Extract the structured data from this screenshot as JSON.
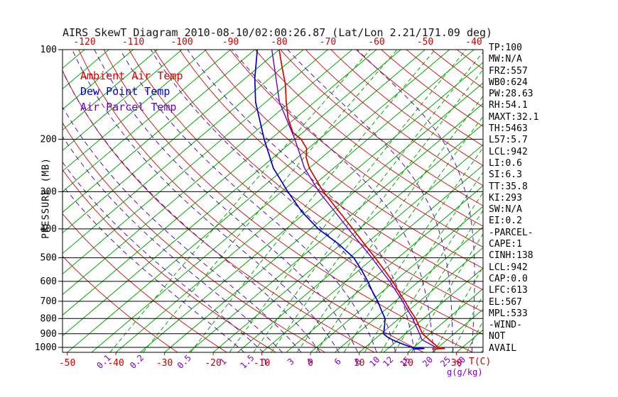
{
  "title": "AIRS SkewT Diagram 2010-08-10/02:00:26.87 (Lat/Lon 2.21/171.09 deg)",
  "axes": {
    "pressure_label": "PRESSURE (MB)",
    "pressure_ticks": [
      100,
      200,
      300,
      400,
      500,
      600,
      700,
      800,
      900,
      1000
    ],
    "top_temp_labels": [
      -120,
      -110,
      -100,
      -90,
      -80,
      -70,
      -60,
      -50,
      -40
    ],
    "bottom_temp_labels": [
      -50,
      -40,
      -30,
      -20,
      -10,
      0,
      10,
      20,
      30
    ],
    "temp_unit_label": "T(C)",
    "mixing_unit_label": "g(g/kg)"
  },
  "legend": [
    {
      "label": "Ambient Air Temp",
      "color": "#dd0000"
    },
    {
      "label": "Dew Point Temp",
      "color": "#0000cc"
    },
    {
      "label": "Air Parcel Temp",
      "color": "#6a00c8"
    }
  ],
  "stats": [
    "TP:100",
    "MW:N/A",
    "FRZ:557",
    "WB0:624",
    "PW:28.63",
    "RH:54.1",
    "MAXT:32.1",
    "TH:5463",
    "L57:5.7",
    "LCL:942",
    "LI:0.6",
    "SI:6.3",
    "TT:35.8",
    "KI:293",
    "SW:N/A",
    "EI:0.2",
    "-PARCEL-",
    "CAPE:1",
    "CINH:138",
    "LCL:942",
    "CAP:0.0",
    "LFC:613",
    "EL:567",
    "MPL:533",
    "-WIND-",
    "NOT",
    "AVAIL"
  ],
  "colors": {
    "ambient": "#dd0000",
    "dew_point": "#0000cc",
    "parcel": "#6a00c8",
    "isotherm_green": "#00a800",
    "adiabat_red": "#cc2020",
    "moist_purple": "#5a10b0",
    "label_red": "#cc0000",
    "label_purple": "#7a00cc",
    "axis_black": "#000000"
  },
  "chart_data": {
    "type": "line",
    "chart": "skew-t-log-p",
    "title": "AIRS SkewT Diagram 2010-08-10/02:00:26.87 (Lat/Lon 2.21/171.09 deg)",
    "y_axis": {
      "label": "PRESSURE (MB)",
      "scale": "log",
      "range": [
        100,
        1039
      ],
      "ticks": [
        100,
        200,
        300,
        400,
        500,
        600,
        700,
        800,
        900,
        1000
      ]
    },
    "x_axis": {
      "label": "T(C)",
      "surface_ticks": [
        -50,
        -40,
        -30,
        -20,
        -10,
        0,
        10,
        20,
        30
      ],
      "top_ticks": [
        -120,
        -110,
        -100,
        -90,
        -80,
        -70,
        -60,
        -50,
        -40
      ]
    },
    "isotherms_c": {
      "min": -125,
      "max": 35,
      "step": 5
    },
    "dry_adiabats_c": {
      "min": -30,
      "max": 180,
      "step": 10
    },
    "moist_adiabats_c": {
      "min": -16,
      "max": 32,
      "step": 4
    },
    "mixing_ratio_lines_g_per_kg": [
      0.1,
      0.2,
      0.5,
      1,
      1.5,
      2,
      3,
      4,
      6,
      8,
      10,
      12,
      15,
      20,
      25,
      30
    ],
    "series": [
      {
        "name": "Ambient Air Temp",
        "data_name": "ambient-temp-curve",
        "color": "#dd0000",
        "width": 1.7,
        "points": [
          [
            1013,
            24.2
          ],
          [
            1009,
            26.6
          ],
          [
            1004,
            25.8
          ],
          [
            1000,
            25.0
          ],
          [
            975,
            23.5
          ],
          [
            950,
            21.8
          ],
          [
            925,
            20.2
          ],
          [
            900,
            18.5
          ],
          [
            850,
            16.0
          ],
          [
            800,
            13.4
          ],
          [
            750,
            10.2
          ],
          [
            700,
            7.0
          ],
          [
            650,
            3.4
          ],
          [
            600,
            -0.4
          ],
          [
            550,
            -4.8
          ],
          [
            500,
            -9.7
          ],
          [
            450,
            -15.2
          ],
          [
            400,
            -21.3
          ],
          [
            350,
            -28.3
          ],
          [
            300,
            -36.4
          ],
          [
            250,
            -45.0
          ],
          [
            230,
            -48.3
          ],
          [
            215,
            -50.3
          ],
          [
            200,
            -53.7
          ],
          [
            190,
            -57.0
          ],
          [
            170,
            -61.5
          ],
          [
            150,
            -65.8
          ],
          [
            130,
            -70.5
          ],
          [
            115,
            -75.0
          ],
          [
            100,
            -80.0
          ]
        ]
      },
      {
        "name": "Dew Point Temp",
        "data_name": "dew-point-curve",
        "color": "#0000cc",
        "width": 1.7,
        "points": [
          [
            1013,
            20.2
          ],
          [
            1009,
            22.4
          ],
          [
            1004,
            21.0
          ],
          [
            1000,
            19.6
          ],
          [
            975,
            17.0
          ],
          [
            950,
            14.4
          ],
          [
            925,
            12.2
          ],
          [
            900,
            10.5
          ],
          [
            850,
            8.9
          ],
          [
            800,
            7.1
          ],
          [
            750,
            4.3
          ],
          [
            700,
            1.4
          ],
          [
            650,
            -2.0
          ],
          [
            600,
            -5.5
          ],
          [
            550,
            -9.5
          ],
          [
            500,
            -14.1
          ],
          [
            450,
            -20.5
          ],
          [
            400,
            -28.4
          ],
          [
            350,
            -36.0
          ],
          [
            300,
            -43.7
          ],
          [
            250,
            -52.4
          ],
          [
            200,
            -61.3
          ],
          [
            150,
            -72.1
          ],
          [
            125,
            -78.0
          ],
          [
            100,
            -84.5
          ]
        ]
      },
      {
        "name": "Air Parcel Temp",
        "data_name": "parcel-temp-curve",
        "color": "#6a00c8",
        "width": 1.4,
        "points": [
          [
            1000,
            24.6
          ],
          [
            942,
            19.8
          ],
          [
            900,
            17.9
          ],
          [
            850,
            15.4
          ],
          [
            800,
            12.8
          ],
          [
            750,
            9.7
          ],
          [
            700,
            6.5
          ],
          [
            650,
            2.9
          ],
          [
            600,
            -1.0
          ],
          [
            550,
            -5.5
          ],
          [
            500,
            -10.4
          ],
          [
            450,
            -16.0
          ],
          [
            400,
            -22.2
          ],
          [
            350,
            -29.2
          ],
          [
            300,
            -37.3
          ],
          [
            250,
            -46.0
          ],
          [
            200,
            -55.0
          ],
          [
            150,
            -67.2
          ],
          [
            100,
            -81.5
          ]
        ]
      }
    ]
  }
}
